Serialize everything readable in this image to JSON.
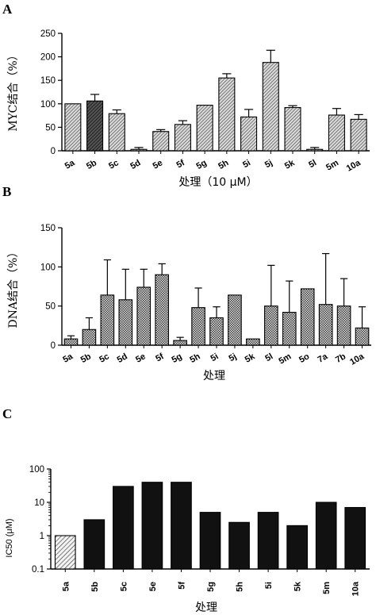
{
  "chart_data": [
    {
      "panel": "A",
      "type": "bar",
      "ylabel": "MYC结合（%）",
      "xlabel": "处理（10 μM）",
      "ylim": [
        0,
        250
      ],
      "yticks": [
        0,
        50,
        100,
        150,
        200,
        250
      ],
      "categories": [
        "5a",
        "5b",
        "5c",
        "5d",
        "5e",
        "5f",
        "5g",
        "5h",
        "5i",
        "5j",
        "5k",
        "5l",
        "5m",
        "10a"
      ],
      "values": [
        100,
        106,
        79,
        3,
        41,
        56,
        97,
        155,
        72,
        188,
        92,
        3,
        76,
        67
      ],
      "errors": [
        0,
        14,
        8,
        4,
        4,
        8,
        0,
        9,
        16,
        26,
        4,
        4,
        14,
        10
      ],
      "colors": [
        "#8a8a8a",
        "#444444",
        "#8a8a8a",
        "#8a8a8a",
        "#8a8a8a",
        "#8a8a8a",
        "#8a8a8a",
        "#8a8a8a",
        "#8a8a8a",
        "#8a8a8a",
        "#8a8a8a",
        "#8a8a8a",
        "#8a8a8a",
        "#8a8a8a"
      ]
    },
    {
      "panel": "B",
      "type": "bar",
      "ylabel": "DNA结合（%）",
      "xlabel": "处理",
      "ylim": [
        0,
        150
      ],
      "yticks": [
        0,
        50,
        100,
        150
      ],
      "categories": [
        "5a",
        "5b",
        "5c",
        "5d",
        "5e",
        "5f",
        "5g",
        "5h",
        "5i",
        "5j",
        "5k",
        "5l",
        "5m",
        "5o",
        "7a",
        "7b",
        "10a"
      ],
      "values": [
        8,
        20,
        64,
        58,
        74,
        90,
        6,
        48,
        35,
        64,
        8,
        50,
        42,
        72,
        52,
        50,
        22
      ],
      "errors": [
        4,
        15,
        45,
        39,
        23,
        14,
        4,
        25,
        14,
        0,
        0,
        52,
        40,
        0,
        65,
        35,
        27
      ],
      "colors": [
        "#8a8a8a"
      ]
    },
    {
      "panel": "C",
      "type": "bar",
      "ylabel": "IC50 (μM)",
      "xlabel": "处理",
      "yscale": "log",
      "ylim": [
        0.1,
        100
      ],
      "yticks": [
        0.1,
        1,
        10,
        100
      ],
      "ytick_labels": [
        "0.1",
        "1",
        "10",
        "100"
      ],
      "categories": [
        "5a",
        "5b",
        "5c",
        "5e",
        "5f",
        "5g",
        "5h",
        "5i",
        "5k",
        "5m",
        "10a"
      ],
      "values": [
        1.0,
        3.0,
        30,
        40,
        40,
        5.0,
        2.5,
        5.0,
        2.0,
        10,
        7.0
      ],
      "colors": [
        "#bdbdbd",
        "#111111",
        "#111111",
        "#111111",
        "#111111",
        "#111111",
        "#111111",
        "#111111",
        "#111111",
        "#111111",
        "#111111"
      ]
    }
  ],
  "panels": {
    "a": {
      "letter": "A"
    },
    "b": {
      "letter": "B"
    },
    "c": {
      "letter": "C"
    }
  }
}
